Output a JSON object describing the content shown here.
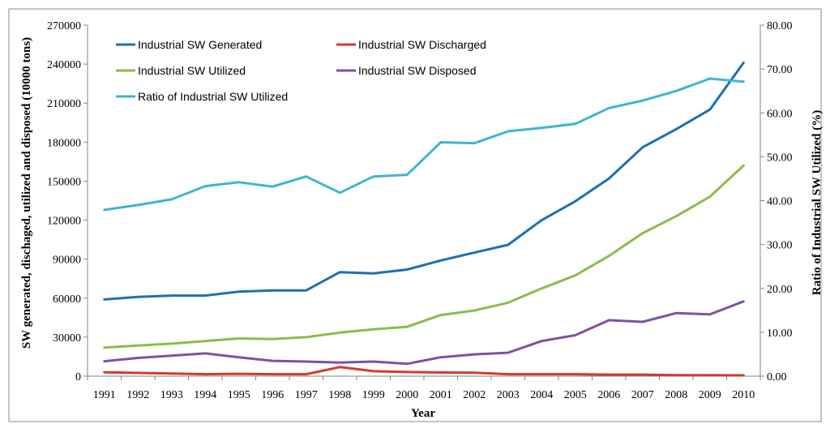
{
  "chart_data": {
    "type": "line",
    "title": "",
    "xlabel": "Year",
    "ylabel": "SW generated, dischaged, utilized and disposed (10000 tons)",
    "y2label": "Ratio of Industrial SW Utilized (%)",
    "ylim": [
      0,
      270000
    ],
    "y2lim": [
      0,
      80
    ],
    "yticks": [
      "0",
      "30000",
      "60000",
      "90000",
      "120000",
      "150000",
      "180000",
      "210000",
      "240000",
      "270000"
    ],
    "y2ticks": [
      "0.00",
      "10.00",
      "20.00",
      "30.00",
      "40.00",
      "50.00",
      "60.00",
      "70.00",
      "80.00"
    ],
    "categories": [
      "1991",
      "1992",
      "1993",
      "1994",
      "1995",
      "1996",
      "1997",
      "1998",
      "1999",
      "2000",
      "2001",
      "2002",
      "2003",
      "2004",
      "2005",
      "2006",
      "2007",
      "2008",
      "2009",
      "2010"
    ],
    "legend_position": "top-left",
    "series": [
      {
        "name": "Industrial SW Generated",
        "axis": "left",
        "color": "#1f6fb2",
        "values": [
          59000,
          61000,
          62000,
          62000,
          65000,
          66000,
          66000,
          80000,
          79000,
          82000,
          89000,
          95000,
          101000,
          120000,
          134500,
          152000,
          176000,
          190000,
          205000,
          241000
        ]
      },
      {
        "name": "Industrial SW Discharged",
        "axis": "left",
        "color": "#d13a34",
        "values": [
          3000,
          2500,
          2000,
          1500,
          1800,
          1500,
          1500,
          7000,
          3800,
          3200,
          2800,
          2700,
          1500,
          1500,
          1500,
          1200,
          1200,
          800,
          700,
          600
        ]
      },
      {
        "name": "Industrial SW  Utilized",
        "axis": "left",
        "color": "#8dbb4b",
        "values": [
          22000,
          23500,
          25000,
          27000,
          29000,
          28500,
          30000,
          33500,
          36000,
          38000,
          47000,
          50500,
          56500,
          67500,
          77500,
          92500,
          110000,
          123000,
          138000,
          162000
        ]
      },
      {
        "name": "Industrial SW Disposed",
        "axis": "left",
        "color": "#7f52a0",
        "values": [
          11500,
          14000,
          15800,
          17500,
          14500,
          11800,
          11200,
          10500,
          11200,
          9500,
          14500,
          16800,
          18000,
          27000,
          31500,
          43000,
          41800,
          48500,
          47500,
          57500
        ]
      },
      {
        "name": "Ratio of Industrial SW Utilized",
        "axis": "right",
        "color": "#3eb5cf",
        "values": [
          37.9,
          39.0,
          40.3,
          43.3,
          44.2,
          43.2,
          45.5,
          41.8,
          45.5,
          45.9,
          53.3,
          53.1,
          55.8,
          56.6,
          57.5,
          61.1,
          62.8,
          65.0,
          67.8,
          67.1
        ]
      }
    ]
  }
}
